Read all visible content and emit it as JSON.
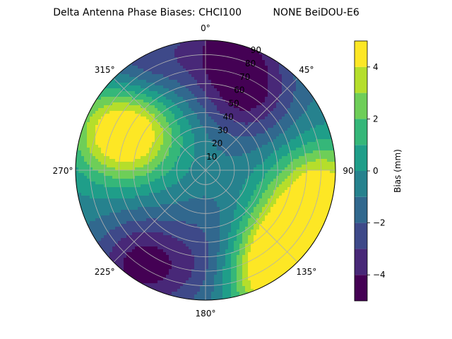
{
  "chart_data": {
    "type": "heatmap",
    "projection": "polar",
    "title": "Delta Antenna Phase Biases: CHCI100          NONE BeiDOU-E6",
    "theta_zero": "top",
    "theta_direction": "clockwise",
    "angle_tick_labels": [
      {
        "angle": 0,
        "label": "0°"
      },
      {
        "angle": 45,
        "label": "45°"
      },
      {
        "angle": 90,
        "label": "90"
      },
      {
        "angle": 135,
        "label": "135°"
      },
      {
        "angle": 180,
        "label": "180°"
      },
      {
        "angle": 225,
        "label": "225°"
      },
      {
        "angle": 270,
        "label": "270°"
      },
      {
        "angle": 315,
        "label": "315°"
      }
    ],
    "radial_ticks": [
      10,
      20,
      30,
      40,
      50,
      60,
      70,
      80,
      90
    ],
    "radial_tick_labels": [
      "10",
      "20",
      "30",
      "40",
      "50",
      "60",
      "70",
      "80",
      "90"
    ],
    "radial_range": [
      0,
      90
    ],
    "grid": true,
    "colormap": "viridis",
    "color_levels": [
      -5,
      -4,
      -3,
      -2,
      -1,
      0,
      1,
      2,
      3,
      4,
      5
    ],
    "colorbar": {
      "label": "Bias (mm)",
      "range": [
        -5,
        5
      ],
      "ticks": [
        -4,
        -2,
        0,
        2,
        4
      ],
      "tick_labels": [
        "−4",
        "−2",
        "0",
        "2",
        "4"
      ]
    },
    "features": [
      {
        "kind": "high",
        "azimuth": 100,
        "zenith": 82,
        "value": 4.6
      },
      {
        "kind": "high",
        "azimuth": 130,
        "zenith": 74,
        "value": 4.3
      },
      {
        "kind": "high",
        "azimuth": 150,
        "zenith": 85,
        "value": 4.5
      },
      {
        "kind": "high",
        "azimuth": 300,
        "zenith": 55,
        "value": 2.8
      },
      {
        "kind": "high",
        "azimuth": 292,
        "zenith": 67,
        "value": 3.2
      },
      {
        "kind": "low",
        "azimuth": 30,
        "zenith": 60,
        "value": -3.9
      },
      {
        "kind": "low",
        "azimuth": 215,
        "zenith": 80,
        "value": -4.3
      },
      {
        "kind": "low",
        "azimuth": 10,
        "zenith": 88,
        "value": -3.8
      },
      {
        "kind": "low",
        "azimuth": 330,
        "zenith": 85,
        "value": -3.0
      },
      {
        "kind": "low",
        "azimuth": 180,
        "zenith": 70,
        "value": -2.2
      },
      {
        "kind": "low",
        "azimuth": 160,
        "zenith": 45,
        "value": -1.6
      }
    ],
    "background_value": -0.5,
    "colors": [
      "#440154",
      "#482878",
      "#3e4989",
      "#31688e",
      "#26828e",
      "#1f9e89",
      "#35b779",
      "#6ece58",
      "#b5de2b",
      "#fde725"
    ]
  }
}
